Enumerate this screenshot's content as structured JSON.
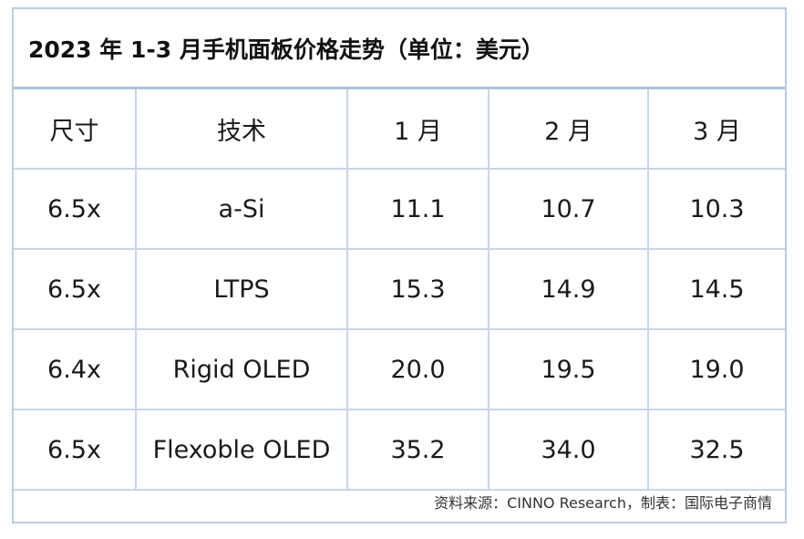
{
  "title": "2023 年 1-3 月手机面板价格走势（单位：美元）",
  "table": {
    "headers": [
      "尺寸",
      "技术",
      "1 月",
      "2 月",
      "3 月"
    ],
    "rows": [
      [
        "6.5x",
        "a-Si",
        "11.1",
        "10.7",
        "10.3"
      ],
      [
        "6.5x",
        "LTPS",
        "15.3",
        "14.9",
        "14.5"
      ],
      [
        "6.4x",
        "Rigid OLED",
        "20.0",
        "19.5",
        "19.0"
      ],
      [
        "6.5x",
        "Flexoble OLED",
        "35.2",
        "34.0",
        "32.5"
      ]
    ]
  },
  "footer": "资料来源：CINNO Research，制表：国际电子商情",
  "colors": {
    "border": "#c6d6e8",
    "title_rule": "#a9c3de"
  }
}
